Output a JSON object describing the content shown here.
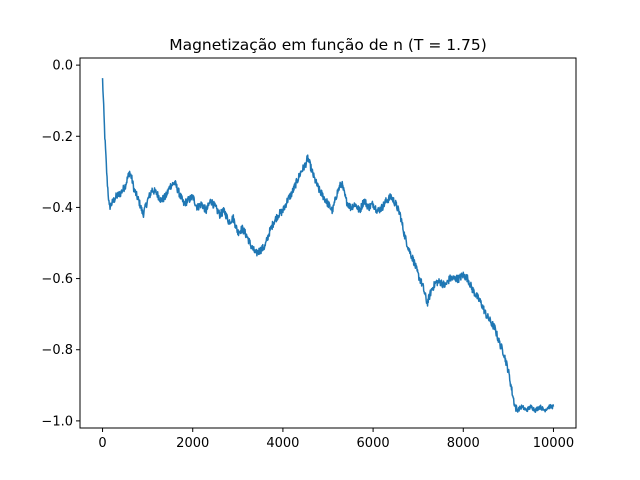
{
  "chart_data": {
    "type": "line",
    "title": "Magnetização em função de n (T = 1.75)",
    "xlabel": "",
    "ylabel": "",
    "xlim": [
      -500,
      10500
    ],
    "ylim": [
      -1.02,
      0.02
    ],
    "x_ticks": [
      0,
      2000,
      4000,
      6000,
      8000,
      10000
    ],
    "x_tick_labels": [
      "0",
      "2000",
      "4000",
      "6000",
      "8000",
      "10000"
    ],
    "y_ticks": [
      0.0,
      -0.2,
      -0.4,
      -0.6,
      -0.8,
      -1.0
    ],
    "y_tick_labels": [
      "0.0",
      "−0.2",
      "−0.4",
      "−0.6",
      "−0.8",
      "−1.0"
    ],
    "grid": false,
    "legend": "none",
    "line_color": "#1f77b4",
    "series": [
      {
        "x": [
          0,
          50,
          100,
          150,
          200,
          250,
          300,
          400,
          500,
          600,
          650,
          700,
          800,
          900,
          1000,
          1100,
          1200,
          1300,
          1400,
          1500,
          1600,
          1700,
          1800,
          1900,
          2000,
          2100,
          2200,
          2300,
          2400,
          2500,
          2600,
          2700,
          2800,
          2900,
          3000,
          3100,
          3200,
          3300,
          3400,
          3500,
          3600,
          3700,
          3800,
          3900,
          4000,
          4100,
          4200,
          4300,
          4400,
          4500,
          4550,
          4600,
          4700,
          4800,
          4900,
          5000,
          5100,
          5200,
          5300,
          5400,
          5500,
          5600,
          5700,
          5800,
          5900,
          6000,
          6100,
          6200,
          6300,
          6400,
          6500,
          6600,
          6700,
          6800,
          6900,
          7000,
          7100,
          7200,
          7300,
          7400,
          7500,
          7600,
          7700,
          7800,
          7900,
          8000,
          8100,
          8200,
          8300,
          8400,
          8500,
          8600,
          8700,
          8800,
          8900,
          9000,
          9100,
          9150,
          9200,
          9300,
          9400,
          9500,
          9600,
          9700,
          9800,
          9900,
          10000
        ],
        "y": [
          -0.04,
          -0.2,
          -0.32,
          -0.4,
          -0.39,
          -0.38,
          -0.37,
          -0.36,
          -0.34,
          -0.3,
          -0.32,
          -0.35,
          -0.38,
          -0.42,
          -0.38,
          -0.35,
          -0.36,
          -0.38,
          -0.37,
          -0.34,
          -0.33,
          -0.36,
          -0.39,
          -0.38,
          -0.37,
          -0.4,
          -0.39,
          -0.41,
          -0.38,
          -0.4,
          -0.42,
          -0.41,
          -0.44,
          -0.43,
          -0.47,
          -0.46,
          -0.48,
          -0.51,
          -0.53,
          -0.52,
          -0.51,
          -0.47,
          -0.44,
          -0.42,
          -0.41,
          -0.38,
          -0.36,
          -0.33,
          -0.3,
          -0.28,
          -0.26,
          -0.28,
          -0.32,
          -0.35,
          -0.37,
          -0.39,
          -0.41,
          -0.36,
          -0.33,
          -0.38,
          -0.4,
          -0.39,
          -0.41,
          -0.38,
          -0.4,
          -0.39,
          -0.41,
          -0.4,
          -0.38,
          -0.37,
          -0.39,
          -0.42,
          -0.48,
          -0.52,
          -0.55,
          -0.59,
          -0.62,
          -0.67,
          -0.63,
          -0.61,
          -0.61,
          -0.62,
          -0.6,
          -0.6,
          -0.6,
          -0.59,
          -0.6,
          -0.63,
          -0.65,
          -0.67,
          -0.7,
          -0.72,
          -0.74,
          -0.78,
          -0.81,
          -0.86,
          -0.93,
          -0.96,
          -0.97,
          -0.96,
          -0.97,
          -0.96,
          -0.97,
          -0.96,
          -0.97,
          -0.96,
          -0.96
        ]
      }
    ]
  }
}
